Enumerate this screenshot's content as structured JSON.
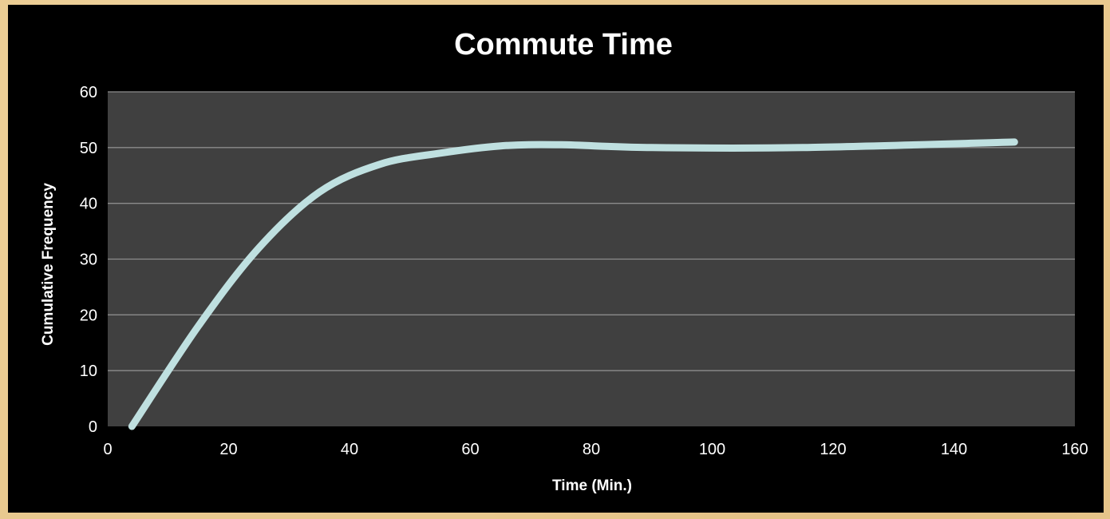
{
  "colors": {
    "page_background": "#e9c98f",
    "chart_background": "#000000",
    "plot_area": "#404040",
    "gridline": "#8c8c8c",
    "series_line": "#bfe0e0",
    "text": "#ffffff"
  },
  "chart_data": {
    "type": "line",
    "title": "Commute Time",
    "xlabel": "Time (Min.)",
    "ylabel": "Cumulative Frequency",
    "xlim": [
      0,
      160
    ],
    "ylim": [
      0,
      60
    ],
    "x_ticks": [
      "0",
      "20",
      "40",
      "60",
      "80",
      "100",
      "120",
      "140",
      "160"
    ],
    "y_ticks": [
      "0",
      "10",
      "20",
      "30",
      "40",
      "50",
      "60"
    ],
    "grid": true,
    "legend": "none",
    "smooth": true,
    "series": [
      {
        "x": [
          4,
          15,
          25,
          35,
          45,
          55,
          65,
          75,
          90,
          115,
          150
        ],
        "y": [
          0,
          18,
          32,
          42,
          47,
          49,
          50.3,
          50.5,
          50,
          50,
          51
        ]
      }
    ]
  }
}
